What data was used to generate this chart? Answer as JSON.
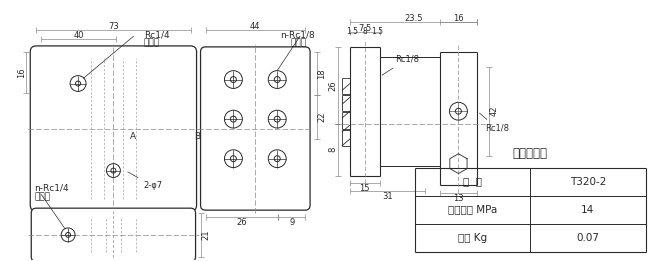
{
  "bg_color": "#ffffff",
  "line_color": "#2a2a2a",
  "dim_color": "#2a2a2a",
  "text_color": "#1a1a1a",
  "center_color": "#888888",
  "title": "集成块参数",
  "table_headers": [
    "型  号",
    "T320-2"
  ],
  "table_rows": [
    [
      "公称压力 MPa",
      "14"
    ],
    [
      "重量 Kg",
      "0.07"
    ]
  ],
  "font_size_label": 6.5,
  "font_size_dim": 6.0,
  "font_size_table": 7.5,
  "font_size_title": 8.5
}
